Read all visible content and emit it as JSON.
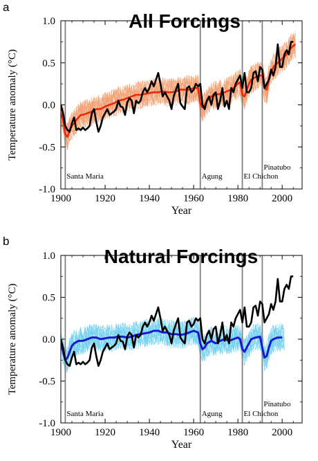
{
  "figure": {
    "background": "#ffffff"
  },
  "chart_data": [
    {
      "type": "line",
      "panel_letter": "a",
      "title": "All Forcings",
      "xlabel": "Year",
      "ylabel": "Temperature anomaly (°C)",
      "xlim": [
        1900,
        2009
      ],
      "ylim": [
        -1.0,
        1.0
      ],
      "xticks": [
        "1900",
        "1920",
        "1940",
        "1960",
        "1980",
        "2000"
      ],
      "yticks": [
        "-1.0",
        "-0.5",
        "0.0",
        "0.5",
        "1.0"
      ],
      "grid": false,
      "model_color": "#e8280a",
      "ensemble_color": "#f2a070",
      "observed_color": "#000000",
      "volcanoes": [
        {
          "name": "Santa Maria",
          "year": 1902
        },
        {
          "name": "Agung",
          "year": 1963
        },
        {
          "name": "El Chichon",
          "year": 1982
        },
        {
          "name": "Pinatubo",
          "year": 1991
        }
      ],
      "series": [
        {
          "role": "observed",
          "x": [
            1900,
            1901,
            1902,
            1903,
            1904,
            1905,
            1906,
            1907,
            1908,
            1909,
            1910,
            1911,
            1912,
            1913,
            1914,
            1915,
            1916,
            1917,
            1918,
            1919,
            1920,
            1921,
            1922,
            1923,
            1924,
            1925,
            1926,
            1927,
            1928,
            1929,
            1930,
            1931,
            1932,
            1933,
            1934,
            1935,
            1936,
            1937,
            1938,
            1939,
            1940,
            1941,
            1942,
            1943,
            1944,
            1945,
            1946,
            1947,
            1948,
            1949,
            1950,
            1951,
            1952,
            1953,
            1954,
            1955,
            1956,
            1957,
            1958,
            1959,
            1960,
            1961,
            1962,
            1963,
            1964,
            1965,
            1966,
            1967,
            1968,
            1969,
            1970,
            1971,
            1972,
            1973,
            1974,
            1975,
            1976,
            1977,
            1978,
            1979,
            1980,
            1981,
            1982,
            1983,
            1984,
            1985,
            1986,
            1987,
            1988,
            1989,
            1990,
            1991,
            1992,
            1993,
            1994,
            1995,
            1996,
            1997,
            1998,
            1999,
            2000,
            2001,
            2002,
            2003,
            2004,
            2005
          ],
          "values": [
            0.0,
            -0.1,
            -0.25,
            -0.3,
            -0.32,
            -0.22,
            -0.15,
            -0.3,
            -0.28,
            -0.3,
            -0.27,
            -0.3,
            -0.28,
            -0.25,
            -0.1,
            -0.05,
            -0.2,
            -0.32,
            -0.25,
            -0.15,
            -0.1,
            -0.05,
            -0.12,
            -0.1,
            -0.08,
            -0.05,
            0.05,
            -0.02,
            -0.03,
            -0.12,
            0.03,
            0.08,
            0.05,
            -0.1,
            0.05,
            0.02,
            0.05,
            0.15,
            0.2,
            0.15,
            0.2,
            0.28,
            0.22,
            0.3,
            0.38,
            0.25,
            0.1,
            0.15,
            0.1,
            0.05,
            -0.05,
            0.1,
            0.18,
            0.25,
            0.02,
            -0.02,
            -0.05,
            0.2,
            0.22,
            0.15,
            0.18,
            0.25,
            0.22,
            0.25,
            0.0,
            -0.05,
            0.05,
            0.1,
            0.0,
            0.12,
            0.15,
            -0.05,
            0.05,
            0.2,
            -0.02,
            0.05,
            -0.05,
            0.2,
            0.15,
            0.25,
            0.3,
            0.35,
            0.2,
            0.38,
            0.15,
            0.15,
            0.2,
            0.38,
            0.4,
            0.28,
            0.45,
            0.42,
            0.2,
            0.25,
            0.3,
            0.42,
            0.35,
            0.45,
            0.72,
            0.45,
            0.45,
            0.6,
            0.65,
            0.6,
            0.75,
            0.75
          ]
        },
        {
          "role": "model_mean",
          "x": [
            1900,
            1901,
            1902,
            1903,
            1904,
            1905,
            1906,
            1907,
            1908,
            1909,
            1910,
            1912,
            1914,
            1916,
            1918,
            1920,
            1922,
            1924,
            1926,
            1928,
            1930,
            1932,
            1934,
            1936,
            1938,
            1940,
            1942,
            1944,
            1946,
            1948,
            1950,
            1952,
            1954,
            1956,
            1958,
            1960,
            1962,
            1963,
            1964,
            1965,
            1966,
            1968,
            1970,
            1972,
            1974,
            1976,
            1978,
            1980,
            1981,
            1982,
            1983,
            1984,
            1985,
            1986,
            1988,
            1990,
            1991,
            1992,
            1993,
            1994,
            1995,
            1996,
            1998,
            2000,
            2002,
            2004,
            2006
          ],
          "values": [
            -0.1,
            -0.18,
            -0.35,
            -0.38,
            -0.3,
            -0.25,
            -0.22,
            -0.18,
            -0.15,
            -0.12,
            -0.12,
            -0.1,
            -0.08,
            -0.05,
            -0.05,
            -0.02,
            0.0,
            0.02,
            0.05,
            0.06,
            0.08,
            0.1,
            0.12,
            0.12,
            0.13,
            0.14,
            0.15,
            0.15,
            0.16,
            0.15,
            0.15,
            0.16,
            0.18,
            0.18,
            0.18,
            0.2,
            0.2,
            0.02,
            -0.03,
            0.0,
            0.05,
            0.1,
            0.12,
            0.13,
            0.15,
            0.17,
            0.2,
            0.25,
            0.27,
            0.12,
            0.1,
            0.18,
            0.25,
            0.3,
            0.33,
            0.35,
            0.35,
            0.2,
            0.18,
            0.3,
            0.38,
            0.45,
            0.5,
            0.55,
            0.6,
            0.68,
            0.72
          ]
        }
      ]
    },
    {
      "type": "line",
      "panel_letter": "b",
      "title": "Natural Forcings",
      "xlabel": "Year",
      "ylabel": "Temperature anomaly (°C)",
      "xlim": [
        1900,
        2009
      ],
      "ylim": [
        -1.0,
        1.0
      ],
      "xticks": [
        "1900",
        "1920",
        "1940",
        "1960",
        "1980",
        "2000"
      ],
      "yticks": [
        "-1.0",
        "-0.5",
        "0.0",
        "0.5",
        "1.0"
      ],
      "grid": false,
      "model_color": "#1818d0",
      "ensemble_color": "#6fd0f0",
      "observed_color": "#000000",
      "volcanoes": [
        {
          "name": "Santa Maria",
          "year": 1902
        },
        {
          "name": "Agung",
          "year": 1963
        },
        {
          "name": "El Chichon",
          "year": 1982
        },
        {
          "name": "Pinatubo",
          "year": 1991
        }
      ],
      "series": [
        {
          "role": "observed",
          "x": [
            1900,
            1901,
            1902,
            1903,
            1904,
            1905,
            1906,
            1907,
            1908,
            1909,
            1910,
            1911,
            1912,
            1913,
            1914,
            1915,
            1916,
            1917,
            1918,
            1919,
            1920,
            1921,
            1922,
            1923,
            1924,
            1925,
            1926,
            1927,
            1928,
            1929,
            1930,
            1931,
            1932,
            1933,
            1934,
            1935,
            1936,
            1937,
            1938,
            1939,
            1940,
            1941,
            1942,
            1943,
            1944,
            1945,
            1946,
            1947,
            1948,
            1949,
            1950,
            1951,
            1952,
            1953,
            1954,
            1955,
            1956,
            1957,
            1958,
            1959,
            1960,
            1961,
            1962,
            1963,
            1964,
            1965,
            1966,
            1967,
            1968,
            1969,
            1970,
            1971,
            1972,
            1973,
            1974,
            1975,
            1976,
            1977,
            1978,
            1979,
            1980,
            1981,
            1982,
            1983,
            1984,
            1985,
            1986,
            1987,
            1988,
            1989,
            1990,
            1991,
            1992,
            1993,
            1994,
            1995,
            1996,
            1997,
            1998,
            1999,
            2000,
            2001,
            2002,
            2003,
            2004,
            2005
          ],
          "values": [
            0.0,
            -0.1,
            -0.25,
            -0.3,
            -0.32,
            -0.22,
            -0.15,
            -0.3,
            -0.28,
            -0.3,
            -0.27,
            -0.3,
            -0.28,
            -0.25,
            -0.1,
            -0.05,
            -0.2,
            -0.32,
            -0.25,
            -0.15,
            -0.1,
            -0.05,
            -0.12,
            -0.1,
            -0.08,
            -0.05,
            0.05,
            -0.02,
            -0.03,
            -0.12,
            0.03,
            0.08,
            0.05,
            -0.1,
            0.05,
            0.02,
            0.05,
            0.15,
            0.2,
            0.15,
            0.2,
            0.28,
            0.22,
            0.3,
            0.38,
            0.25,
            0.1,
            0.15,
            0.1,
            0.05,
            -0.05,
            0.1,
            0.18,
            0.25,
            0.02,
            -0.02,
            -0.05,
            0.2,
            0.22,
            0.15,
            0.18,
            0.25,
            0.22,
            0.25,
            0.0,
            -0.05,
            0.05,
            0.1,
            0.0,
            0.12,
            0.15,
            -0.05,
            0.05,
            0.2,
            -0.02,
            0.05,
            -0.05,
            0.2,
            0.15,
            0.25,
            0.3,
            0.35,
            0.2,
            0.38,
            0.15,
            0.15,
            0.2,
            0.38,
            0.4,
            0.28,
            0.45,
            0.42,
            0.2,
            0.25,
            0.3,
            0.42,
            0.35,
            0.45,
            0.72,
            0.45,
            0.45,
            0.6,
            0.65,
            0.6,
            0.75,
            0.75
          ]
        },
        {
          "role": "model_mean",
          "x": [
            1900,
            1901,
            1902,
            1903,
            1904,
            1905,
            1906,
            1908,
            1910,
            1912,
            1914,
            1916,
            1918,
            1920,
            1922,
            1924,
            1926,
            1928,
            1930,
            1932,
            1934,
            1936,
            1938,
            1940,
            1942,
            1944,
            1946,
            1948,
            1950,
            1952,
            1954,
            1956,
            1958,
            1960,
            1962,
            1963,
            1964,
            1965,
            1966,
            1968,
            1970,
            1972,
            1974,
            1976,
            1978,
            1980,
            1981,
            1982,
            1983,
            1984,
            1985,
            1986,
            1988,
            1990,
            1991,
            1992,
            1993,
            1994,
            1995,
            1996,
            1998,
            2000
          ],
          "values": [
            -0.05,
            -0.15,
            -0.25,
            -0.22,
            -0.15,
            -0.08,
            -0.05,
            -0.02,
            -0.02,
            0.0,
            0.02,
            0.02,
            0.0,
            0.01,
            0.02,
            0.02,
            0.03,
            0.03,
            0.02,
            0.03,
            0.05,
            0.06,
            0.07,
            0.08,
            0.1,
            0.1,
            0.08,
            0.08,
            0.06,
            0.06,
            0.05,
            0.06,
            0.08,
            0.1,
            0.08,
            -0.05,
            -0.12,
            -0.1,
            -0.05,
            -0.02,
            -0.05,
            -0.02,
            0.0,
            -0.02,
            0.0,
            0.02,
            0.0,
            -0.12,
            -0.15,
            -0.1,
            -0.05,
            0.0,
            0.02,
            0.03,
            -0.1,
            -0.22,
            -0.2,
            -0.1,
            -0.02,
            0.0,
            0.02,
            0.02
          ]
        }
      ]
    }
  ]
}
